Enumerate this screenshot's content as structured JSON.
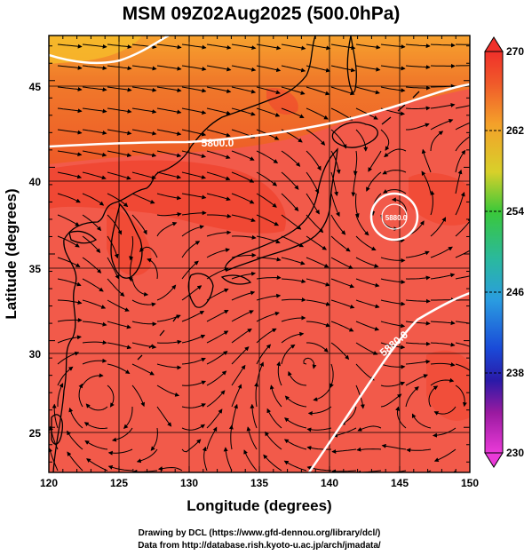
{
  "title": "MSM 09Z02Aug2025 (500.0hPa)",
  "map": {
    "xlabel": "Longitude (degrees)",
    "ylabel": "Latitude  (degrees)",
    "lon_range": [
      120,
      150
    ],
    "lat_range": [
      22.4,
      47.6
    ],
    "lon_ticks": [
      "120",
      "125",
      "130",
      "135",
      "140",
      "145",
      "150"
    ],
    "lat_ticks": [
      "25",
      "30",
      "35",
      "40",
      "45"
    ],
    "grid": true,
    "contour_labels": [
      "5800.0",
      "5880.0",
      "5880.0"
    ],
    "colors": {
      "background_field": "#f25a4a",
      "warm_band": "#ef3b22",
      "north_field": "#f0782a",
      "coast_line": "#000000",
      "contour_line": "#ffffff"
    }
  },
  "colorbar": {
    "ticks": [
      "270",
      "262",
      "254",
      "246",
      "238",
      "230"
    ],
    "range": [
      230,
      270
    ],
    "colors_top_to_bottom": [
      "#f0302a",
      "#f07a2a",
      "#f4b82a",
      "#c8d82a",
      "#3ac83a",
      "#2ab8a0",
      "#2a9ce0",
      "#1a4ad8",
      "#2a1aa8",
      "#9a1aa0",
      "#ea3ad8"
    ]
  },
  "credits": {
    "line1": "Drawing by DCL (https://www.gfd-dennou.org/library/dcl/)",
    "line2": "Data from http://database.rish.kyoto-u.ac.jp/arch/jmadata/"
  }
}
